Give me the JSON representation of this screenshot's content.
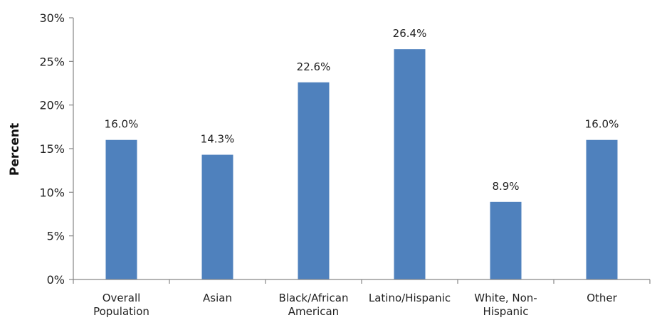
{
  "chart_data": {
    "type": "bar",
    "title": "",
    "xlabel": "",
    "ylabel": "Percent",
    "ylim": [
      0,
      30
    ],
    "yticks": [
      "0%",
      "5%",
      "10%",
      "15%",
      "20%",
      "25%",
      "30%"
    ],
    "categories": [
      [
        "Overall",
        "Population"
      ],
      [
        "Asian"
      ],
      [
        "Black/African",
        "American"
      ],
      [
        "Latino/Hispanic"
      ],
      [
        "White, Non-",
        "Hispanic"
      ],
      [
        "Other"
      ]
    ],
    "values": [
      16.0,
      14.3,
      22.6,
      26.4,
      8.9,
      16.0
    ],
    "data_labels": [
      "16.0%",
      "14.3%",
      "22.6%",
      "26.4%",
      "8.9%",
      "16.0%"
    ],
    "bar_color": "#4f81bd",
    "grid": false,
    "legend": "none"
  }
}
